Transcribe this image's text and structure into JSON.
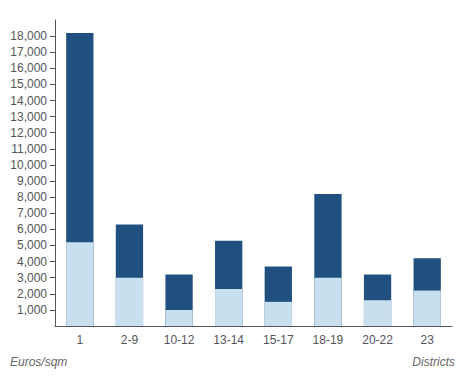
{
  "chart_data": {
    "type": "bar",
    "categories": [
      "1",
      "2-9",
      "10-12",
      "13-14",
      "15-17",
      "18-19",
      "20-22",
      "23"
    ],
    "series": [
      {
        "color": "#c8dff0",
        "values": [
          5200,
          3000,
          1000,
          2300,
          1500,
          3000,
          1600,
          2200
        ]
      },
      {
        "color": "#1f5080",
        "values": [
          18200,
          6300,
          3200,
          5300,
          3700,
          8200,
          3200,
          4200
        ]
      }
    ],
    "ylabel": "Euros/sqm",
    "xlabel": "Districts",
    "ylim": [
      0,
      19000
    ],
    "yticks": [
      {
        "value": 1000,
        "label": "1,000"
      },
      {
        "value": 2000,
        "label": "2,000"
      },
      {
        "value": 3000,
        "label": "3,000"
      },
      {
        "value": 4000,
        "label": "4,000"
      },
      {
        "value": 5000,
        "label": "5,000"
      },
      {
        "value": 6000,
        "label": "6,000"
      },
      {
        "value": 7000,
        "label": "7,000"
      },
      {
        "value": 8000,
        "label": "8,000"
      },
      {
        "value": 9000,
        "label": "9,000"
      },
      {
        "value": 10000,
        "label": "10,000"
      },
      {
        "value": 11000,
        "label": "11,000"
      },
      {
        "value": 12000,
        "label": "12,000"
      },
      {
        "value": 13000,
        "label": "13,000"
      },
      {
        "value": 14000,
        "label": "14,000"
      },
      {
        "value": 15000,
        "label": "15,000"
      },
      {
        "value": 16000,
        "label": "16,000"
      },
      {
        "value": 17000,
        "label": "17,000"
      },
      {
        "value": 18000,
        "label": "18,000"
      }
    ],
    "grid": false
  }
}
